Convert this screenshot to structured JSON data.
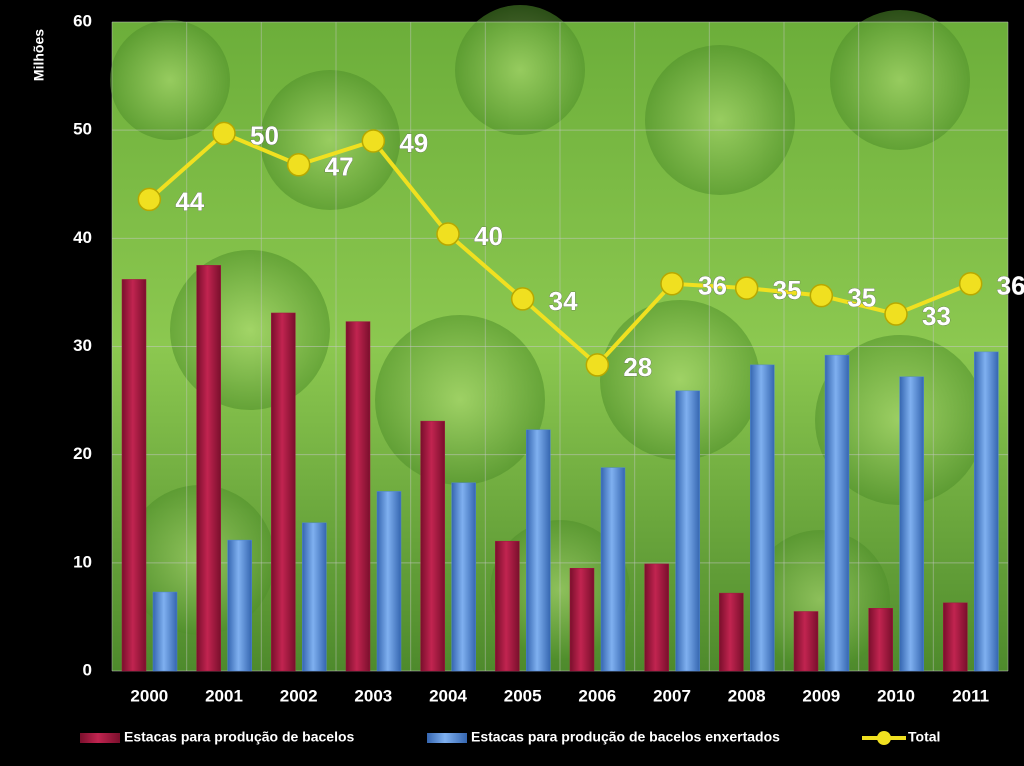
{
  "chart_data": {
    "type": "bar",
    "y_label": "Milhões",
    "categories": [
      "2000",
      "2001",
      "2002",
      "2003",
      "2004",
      "2005",
      "2006",
      "2007",
      "2008",
      "2009",
      "2010",
      "2011"
    ],
    "series": [
      {
        "name": "Estacas para produção de bacelos",
        "color": "#a0173f",
        "values": [
          36.2,
          37.5,
          33.1,
          32.3,
          23.1,
          12.0,
          9.5,
          9.9,
          7.2,
          5.5,
          5.8,
          6.3
        ]
      },
      {
        "name": "Estacas para produção de bacelos enxertados",
        "color": "#4f86d8",
        "values": [
          7.3,
          12.1,
          13.7,
          16.6,
          17.4,
          22.3,
          18.8,
          25.9,
          28.3,
          29.2,
          27.2,
          29.5
        ]
      },
      {
        "name": "Total",
        "type": "line",
        "color": "#f0e020",
        "values": [
          43.6,
          49.7,
          46.8,
          49.0,
          40.4,
          34.4,
          28.3,
          35.8,
          35.4,
          34.7,
          33.0,
          35.8
        ],
        "value_labels": [
          "44",
          "50",
          "47",
          "49",
          "40",
          "34",
          "28",
          "36",
          "35",
          "35",
          "33",
          "36"
        ]
      }
    ],
    "ylim": [
      0,
      60
    ],
    "yticks": [
      0,
      10,
      20,
      30,
      40,
      50,
      60
    ],
    "grid": true
  }
}
